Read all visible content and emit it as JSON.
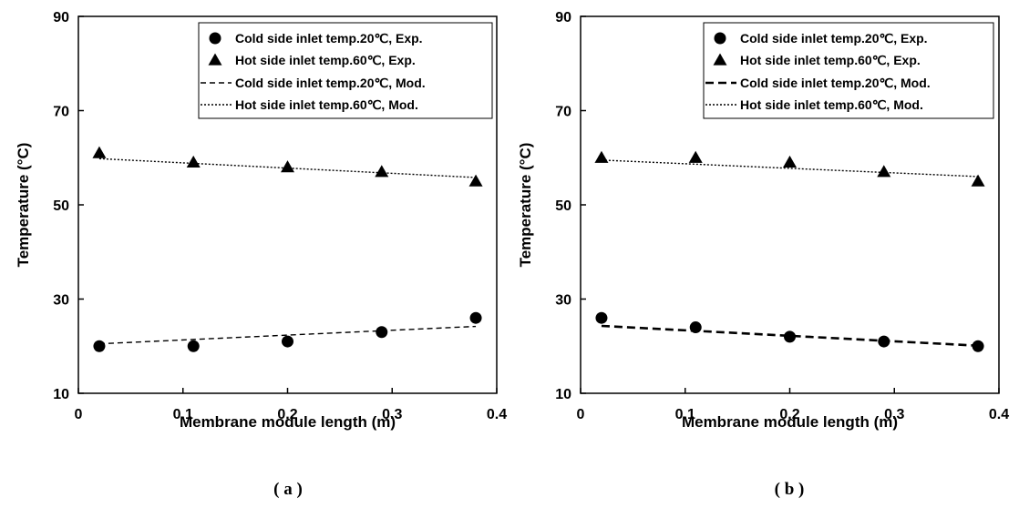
{
  "chart_data": [
    {
      "type": "scatter",
      "panel_label": "( a )",
      "xlabel": "Membrane module length (m)",
      "ylabel": "Temperature (°C)",
      "xlim": [
        0,
        0.4
      ],
      "ylim": [
        10,
        90
      ],
      "xticks": [
        "0",
        "0.1",
        "0.2",
        "0.3",
        "0.4"
      ],
      "yticks": [
        "10",
        "30",
        "50",
        "70",
        "90"
      ],
      "legend_position": "top-right",
      "grid": false,
      "series": [
        {
          "name": "Cold side inlet temp.20℃, Exp.",
          "kind": "marker",
          "marker": "circle",
          "x": [
            0.02,
            0.11,
            0.2,
            0.29,
            0.38
          ],
          "y": [
            20,
            20,
            21,
            23,
            26
          ]
        },
        {
          "name": "Hot side inlet temp.60℃, Exp.",
          "kind": "marker",
          "marker": "triangle",
          "x": [
            0.02,
            0.11,
            0.2,
            0.29,
            0.38
          ],
          "y": [
            61,
            59,
            58,
            57,
            55
          ]
        },
        {
          "name": "Cold side inlet temp.20℃, Mod.",
          "kind": "line",
          "dash": "dashed",
          "weight": "thin",
          "x": [
            0.02,
            0.38
          ],
          "y": [
            20.5,
            24.2
          ]
        },
        {
          "name": "Hot side inlet temp.60℃, Mod.",
          "kind": "line",
          "dash": "dotted",
          "weight": "thin",
          "x": [
            0.02,
            0.38
          ],
          "y": [
            59.8,
            55.8
          ]
        }
      ]
    },
    {
      "type": "scatter",
      "panel_label": "( b )",
      "xlabel": "Membrane module length (m)",
      "ylabel": "Temperature (°C)",
      "xlim": [
        0,
        0.4
      ],
      "ylim": [
        10,
        90
      ],
      "xticks": [
        "0",
        "0.1",
        "0.2",
        "0.3",
        "0.4"
      ],
      "yticks": [
        "10",
        "30",
        "50",
        "70",
        "90"
      ],
      "legend_position": "top-right",
      "grid": false,
      "series": [
        {
          "name": "Cold side inlet temp.20℃, Exp.",
          "kind": "marker",
          "marker": "circle",
          "x": [
            0.02,
            0.11,
            0.2,
            0.29,
            0.38
          ],
          "y": [
            26,
            24,
            22,
            21,
            20
          ]
        },
        {
          "name": "Hot side inlet temp.60℃, Exp.",
          "kind": "marker",
          "marker": "triangle",
          "x": [
            0.02,
            0.11,
            0.2,
            0.29,
            0.38
          ],
          "y": [
            60,
            60,
            59,
            57,
            55
          ]
        },
        {
          "name": "Cold side inlet temp.20℃, Mod.",
          "kind": "line",
          "dash": "dashed",
          "weight": "thick",
          "x": [
            0.02,
            0.38
          ],
          "y": [
            24.3,
            20.1
          ]
        },
        {
          "name": "Hot side inlet temp.60℃, Mod.",
          "kind": "line",
          "dash": "dotted",
          "weight": "thin",
          "x": [
            0.02,
            0.38
          ],
          "y": [
            59.5,
            56.0
          ]
        }
      ]
    }
  ]
}
